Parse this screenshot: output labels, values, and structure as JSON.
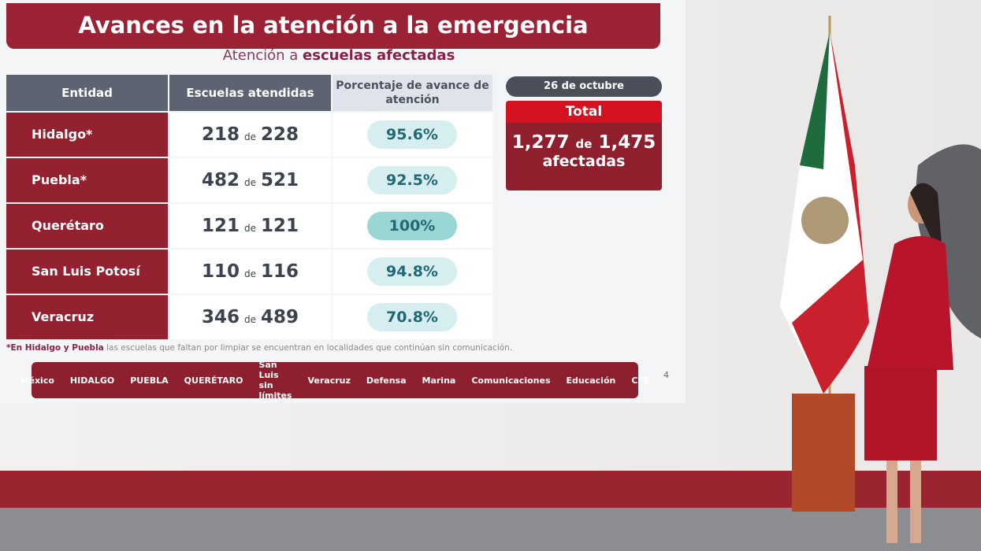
{
  "slide": {
    "title": "Avances en la atención a la emergencia",
    "subtitle_pre": "Atención a",
    "subtitle_bold": "escuelas afectadas",
    "headers": [
      "Entidad",
      "Escuelas atendidas",
      "Porcentaje de avance de atención"
    ],
    "rows": [
      {
        "entidad": "Hidalgo*",
        "atendidas": "218",
        "de": "de",
        "total": "228",
        "pct": "95.6%"
      },
      {
        "entidad": "Puebla*",
        "atendidas": "482",
        "de": "de",
        "total": "521",
        "pct": "92.5%"
      },
      {
        "entidad": "Querétaro",
        "atendidas": "121",
        "de": "de",
        "total": "121",
        "pct": "100%"
      },
      {
        "entidad": "San Luis Potosí",
        "atendidas": "110",
        "de": "de",
        "total": "116",
        "pct": "94.8%"
      },
      {
        "entidad": "Veracruz",
        "atendidas": "346",
        "de": "de",
        "total": "489",
        "pct": "70.8%"
      }
    ],
    "date": "26 de octubre",
    "total_label": "Total",
    "total_done": "1,277",
    "total_de": "de",
    "total_all": "1,475",
    "total_suffix": "afectadas",
    "note_bold": "*En Hidalgo y Puebla",
    "note_rest": " las escuelas que faltan por limpiar se encuentran en localidades que continúan sin comunicación.",
    "logos": [
      "México",
      "HIDALGO",
      "PUEBLA",
      "QUERÉTARO",
      "San Luis sin límites",
      "Veracruz",
      "Defensa",
      "Marina",
      "Comunicaciones",
      "Educación",
      "CFE"
    ],
    "page_number": "4"
  }
}
